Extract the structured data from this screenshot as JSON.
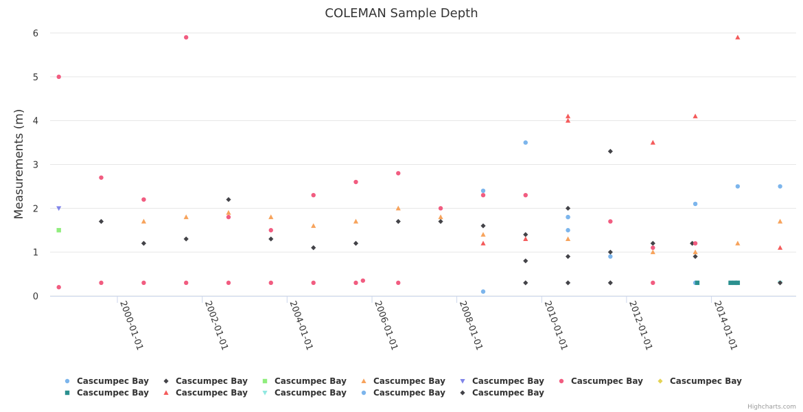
{
  "chart_data": {
    "type": "scatter",
    "title": "COLEMAN Sample Depth",
    "xlabel": "",
    "ylabel": "Measurements (m)",
    "ylim": [
      0,
      6
    ],
    "yticks": [
      "0",
      "1",
      "2",
      "3",
      "4",
      "5",
      "6"
    ],
    "xticks": [
      "2000-01-01",
      "2002-01-01",
      "2004-01-01",
      "2006-01-01",
      "2008-01-01",
      "2010-01-01",
      "2012-01-01",
      "2014-01-01"
    ],
    "x_range": [
      "1998-06-01",
      "2015-12-31"
    ],
    "grid": true,
    "legend_position": "bottom-left",
    "credit": "Highcharts.com",
    "series": [
      {
        "name": "Cascumpec Bay",
        "marker": "circle",
        "color": "#7cb5ec",
        "points": [
          [
            "2008-08-15",
            2.4
          ],
          [
            "2008-08-15",
            0.1
          ],
          [
            "2009-08-15",
            3.5
          ],
          [
            "2010-08-15",
            1.8
          ],
          [
            "2010-08-15",
            1.5
          ],
          [
            "2011-08-15",
            0.9
          ],
          [
            "2013-08-15",
            2.1
          ],
          [
            "2013-08-15",
            0.3
          ],
          [
            "2014-08-15",
            2.5
          ],
          [
            "2015-08-15",
            2.5
          ]
        ]
      },
      {
        "name": "Cascumpec Bay",
        "marker": "diamond",
        "color": "#434348",
        "points": [
          [
            "1999-08-15",
            1.7
          ],
          [
            "2000-08-15",
            1.2
          ],
          [
            "2001-08-15",
            1.3
          ],
          [
            "2002-08-15",
            2.2
          ],
          [
            "2003-08-15",
            1.3
          ],
          [
            "2004-08-15",
            1.1
          ],
          [
            "2005-08-15",
            1.2
          ],
          [
            "2006-08-15",
            1.7
          ],
          [
            "2007-08-15",
            1.7
          ],
          [
            "2008-08-15",
            1.6
          ],
          [
            "2009-08-15",
            1.4
          ],
          [
            "2009-08-15",
            0.8
          ],
          [
            "2010-08-15",
            2.0
          ],
          [
            "2010-08-15",
            0.9
          ],
          [
            "2011-08-15",
            3.3
          ],
          [
            "2011-08-15",
            1.0
          ],
          [
            "2012-08-15",
            1.2
          ],
          [
            "2013-07-20",
            1.2
          ],
          [
            "2013-08-15",
            0.9
          ]
        ]
      },
      {
        "name": "Cascumpec Bay",
        "marker": "square",
        "color": "#90ed7d",
        "points": [
          [
            "1998-08-15",
            1.5
          ]
        ]
      },
      {
        "name": "Cascumpec Bay",
        "marker": "triangle",
        "color": "#f7a35c",
        "points": [
          [
            "2000-08-15",
            1.7
          ],
          [
            "2001-08-15",
            1.8
          ],
          [
            "2002-08-15",
            1.9
          ],
          [
            "2003-08-15",
            1.8
          ],
          [
            "2004-08-15",
            1.6
          ],
          [
            "2005-08-15",
            1.7
          ],
          [
            "2006-08-15",
            2.0
          ],
          [
            "2007-08-15",
            1.8
          ],
          [
            "2008-08-15",
            1.4
          ],
          [
            "2010-08-15",
            1.3
          ],
          [
            "2012-08-15",
            1.0
          ],
          [
            "2013-08-15",
            1.0
          ],
          [
            "2014-08-15",
            1.2
          ],
          [
            "2015-08-15",
            1.7
          ]
        ]
      },
      {
        "name": "Cascumpec Bay",
        "marker": "triangle-down",
        "color": "#8085e9",
        "points": [
          [
            "1998-08-15",
            2.0
          ]
        ]
      },
      {
        "name": "Cascumpec Bay",
        "marker": "circle",
        "color": "#f15c80",
        "points": [
          [
            "1998-08-15",
            5.0
          ],
          [
            "1998-08-15",
            0.2
          ],
          [
            "1999-08-15",
            2.7
          ],
          [
            "1999-08-15",
            0.3
          ],
          [
            "2000-08-15",
            2.2
          ],
          [
            "2000-08-15",
            0.3
          ],
          [
            "2001-08-15",
            5.9
          ],
          [
            "2001-08-15",
            0.3
          ],
          [
            "2002-08-15",
            1.8
          ],
          [
            "2002-08-15",
            0.3
          ],
          [
            "2003-08-15",
            1.5
          ],
          [
            "2003-08-15",
            0.3
          ],
          [
            "2004-08-15",
            2.3
          ],
          [
            "2004-08-15",
            0.3
          ],
          [
            "2005-08-15",
            2.6
          ],
          [
            "2005-08-15",
            0.3
          ],
          [
            "2005-10-15",
            0.35
          ],
          [
            "2006-08-15",
            2.8
          ],
          [
            "2006-08-15",
            0.3
          ],
          [
            "2007-08-15",
            2.0
          ],
          [
            "2008-08-15",
            2.3
          ],
          [
            "2009-08-15",
            2.3
          ],
          [
            "2011-08-15",
            1.7
          ],
          [
            "2012-08-15",
            1.1
          ],
          [
            "2012-08-15",
            0.3
          ],
          [
            "2013-08-15",
            1.2
          ]
        ]
      },
      {
        "name": "Cascumpec Bay",
        "marker": "diamond",
        "color": "#e4d354",
        "points": []
      },
      {
        "name": "Cascumpec Bay",
        "marker": "square",
        "color": "#2b908f",
        "points": [
          [
            "2013-09-01",
            0.3
          ],
          [
            "2014-06-15",
            0.3
          ],
          [
            "2014-07-20",
            0.3
          ],
          [
            "2014-08-15",
            0.3
          ]
        ]
      },
      {
        "name": "Cascumpec Bay",
        "marker": "triangle",
        "color": "#f45b5b",
        "points": [
          [
            "2008-08-15",
            1.2
          ],
          [
            "2009-08-15",
            1.3
          ],
          [
            "2010-08-15",
            4.1
          ],
          [
            "2010-08-15",
            4.0
          ],
          [
            "2012-08-15",
            3.5
          ],
          [
            "2013-08-15",
            4.1
          ],
          [
            "2014-08-15",
            5.9
          ],
          [
            "2015-08-15",
            1.1
          ]
        ]
      },
      {
        "name": "Cascumpec Bay",
        "marker": "triangle-down",
        "color": "#91e8e1",
        "points": [
          [
            "2015-08-15",
            0.3
          ]
        ]
      },
      {
        "name": "Cascumpec Bay",
        "marker": "circle",
        "color": "#7cb5ec",
        "points": [
          [
            "2010-08-15",
            1.8
          ]
        ]
      },
      {
        "name": "Cascumpec Bay",
        "marker": "diamond",
        "color": "#434348",
        "points": [
          [
            "2009-08-15",
            0.3
          ],
          [
            "2010-08-15",
            0.3
          ],
          [
            "2011-08-15",
            0.3
          ],
          [
            "2015-08-15",
            0.3
          ]
        ]
      }
    ]
  }
}
